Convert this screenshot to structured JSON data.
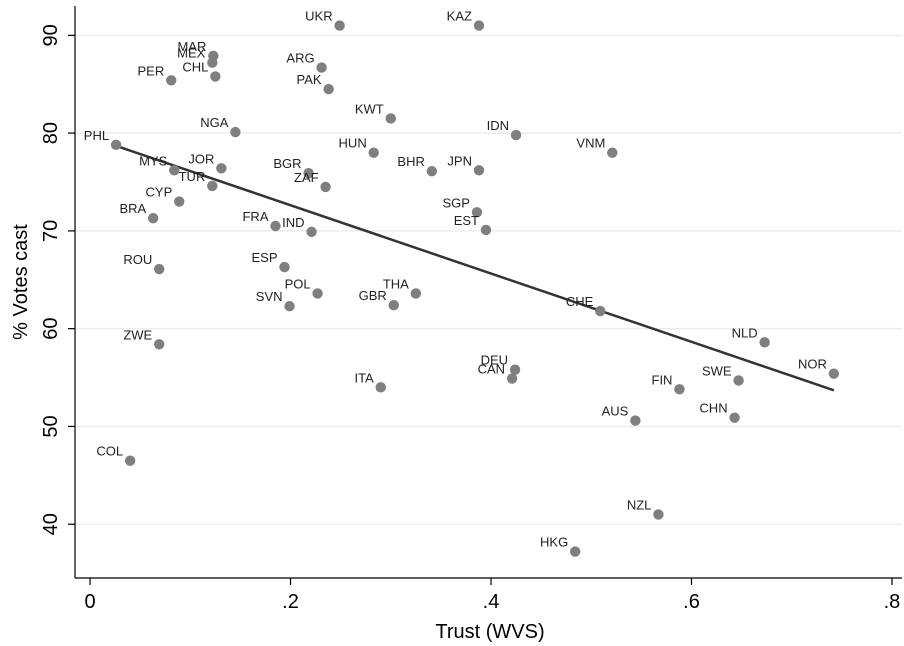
{
  "chart_data": {
    "type": "scatter",
    "xlabel": "Trust (WVS)",
    "ylabel": "% Votes cast",
    "xlim": [
      -0.015,
      0.81
    ],
    "ylim": [
      34.5,
      93
    ],
    "x_ticks": [
      {
        "value": 0,
        "label": "0"
      },
      {
        "value": 0.2,
        "label": ".2"
      },
      {
        "value": 0.4,
        "label": ".4"
      },
      {
        "value": 0.6,
        "label": ".6"
      },
      {
        "value": 0.8,
        "label": ".8"
      }
    ],
    "y_ticks": [
      {
        "value": 40,
        "label": "40"
      },
      {
        "value": 50,
        "label": "50"
      },
      {
        "value": 60,
        "label": "60"
      },
      {
        "value": 70,
        "label": "70"
      },
      {
        "value": 80,
        "label": "80"
      },
      {
        "value": 90,
        "label": "90"
      }
    ],
    "grid": "horizontal",
    "marker_color": "#7f7f7f",
    "fit_line_color": "#333333",
    "points": [
      {
        "label": "UKR",
        "x": 0.249,
        "y": 91.0
      },
      {
        "label": "KAZ",
        "x": 0.388,
        "y": 91.0
      },
      {
        "label": "MAR",
        "x": 0.123,
        "y": 87.9
      },
      {
        "label": "MEX",
        "x": 0.122,
        "y": 87.2
      },
      {
        "label": "CHL",
        "x": 0.125,
        "y": 85.8
      },
      {
        "label": "PER",
        "x": 0.081,
        "y": 85.4
      },
      {
        "label": "ARG",
        "x": 0.231,
        "y": 86.7
      },
      {
        "label": "PAK",
        "x": 0.238,
        "y": 84.5
      },
      {
        "label": "KWT",
        "x": 0.3,
        "y": 81.5
      },
      {
        "label": "IDN",
        "x": 0.425,
        "y": 79.8
      },
      {
        "label": "NGA",
        "x": 0.145,
        "y": 80.1
      },
      {
        "label": "PHL",
        "x": 0.026,
        "y": 78.8
      },
      {
        "label": "HUN",
        "x": 0.283,
        "y": 78.0
      },
      {
        "label": "VNM",
        "x": 0.521,
        "y": 78.0
      },
      {
        "label": "MYS",
        "x": 0.084,
        "y": 76.2
      },
      {
        "label": "JOR",
        "x": 0.131,
        "y": 76.4
      },
      {
        "label": "BGR",
        "x": 0.218,
        "y": 75.9
      },
      {
        "label": "BHR",
        "x": 0.341,
        "y": 76.1
      },
      {
        "label": "JPN",
        "x": 0.388,
        "y": 76.2
      },
      {
        "label": "TUR",
        "x": 0.122,
        "y": 74.6
      },
      {
        "label": "ZAF",
        "x": 0.235,
        "y": 74.5
      },
      {
        "label": "CYP",
        "x": 0.089,
        "y": 73.0
      },
      {
        "label": "SGP",
        "x": 0.386,
        "y": 71.9
      },
      {
        "label": "BRA",
        "x": 0.063,
        "y": 71.3
      },
      {
        "label": "FRA",
        "x": 0.185,
        "y": 70.5
      },
      {
        "label": "IND",
        "x": 0.221,
        "y": 69.9
      },
      {
        "label": "EST",
        "x": 0.395,
        "y": 70.1
      },
      {
        "label": "ROU",
        "x": 0.069,
        "y": 66.1
      },
      {
        "label": "ESP",
        "x": 0.194,
        "y": 66.3
      },
      {
        "label": "POL",
        "x": 0.227,
        "y": 63.6
      },
      {
        "label": "THA",
        "x": 0.325,
        "y": 63.6
      },
      {
        "label": "SVN",
        "x": 0.199,
        "y": 62.3
      },
      {
        "label": "GBR",
        "x": 0.303,
        "y": 62.4
      },
      {
        "label": "CHE",
        "x": 0.509,
        "y": 61.8
      },
      {
        "label": "NLD",
        "x": 0.673,
        "y": 58.6
      },
      {
        "label": "ZWE",
        "x": 0.069,
        "y": 58.4
      },
      {
        "label": "DEU",
        "x": 0.424,
        "y": 55.8
      },
      {
        "label": "CAN",
        "x": 0.421,
        "y": 54.9
      },
      {
        "label": "NOR",
        "x": 0.742,
        "y": 55.4
      },
      {
        "label": "SWE",
        "x": 0.647,
        "y": 54.7
      },
      {
        "label": "FIN",
        "x": 0.588,
        "y": 53.8
      },
      {
        "label": "ITA",
        "x": 0.29,
        "y": 54.0
      },
      {
        "label": "AUS",
        "x": 0.544,
        "y": 50.6
      },
      {
        "label": "CHN",
        "x": 0.643,
        "y": 50.9
      },
      {
        "label": "COL",
        "x": 0.04,
        "y": 46.5
      },
      {
        "label": "NZL",
        "x": 0.567,
        "y": 41.0
      },
      {
        "label": "HKG",
        "x": 0.484,
        "y": 37.2
      }
    ],
    "fit_line": {
      "x": [
        0.026,
        0.742
      ],
      "y": [
        78.7,
        53.7
      ]
    }
  }
}
